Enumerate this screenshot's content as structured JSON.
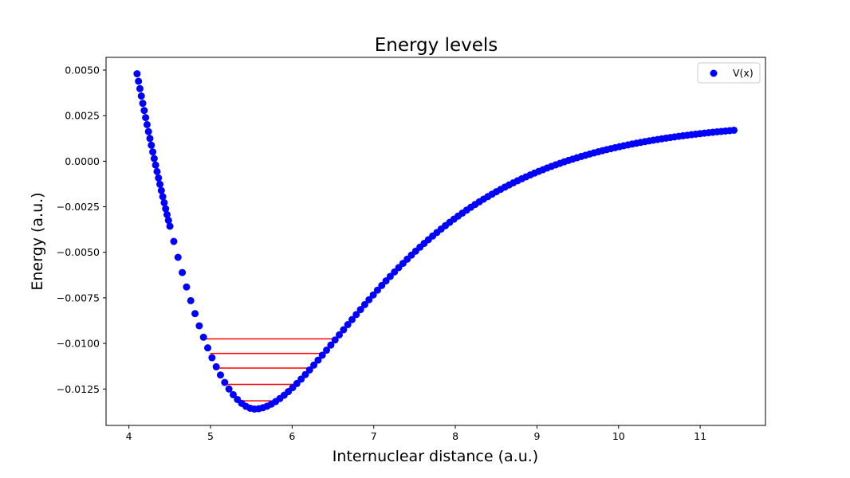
{
  "chart_data": {
    "type": "scatter",
    "title": "Energy levels",
    "xlabel": "Internuclear distance (a.u.)",
    "ylabel": "Energy (a.u.)",
    "xlim": [
      3.72,
      11.8
    ],
    "ylim": [
      -0.0145,
      0.0057
    ],
    "xticks": [
      4,
      5,
      6,
      7,
      8,
      9,
      10,
      11
    ],
    "xtick_labels": [
      "4",
      "5",
      "6",
      "7",
      "8",
      "9",
      "10",
      "11"
    ],
    "yticks": [
      -0.0125,
      -0.01,
      -0.0075,
      -0.005,
      -0.0025,
      0.0,
      0.0025,
      0.005
    ],
    "ytick_labels": [
      "−0.0125",
      "−0.0100",
      "−0.0075",
      "−0.0050",
      "−0.0025",
      "0.0000",
      "0.0025",
      "0.0050"
    ],
    "grid": false,
    "legend": {
      "position": "top-right",
      "entries": [
        {
          "label": "V(x)",
          "color": "#0000ff",
          "marker": "circle"
        }
      ]
    },
    "series": [
      {
        "name": "V(x)",
        "color": "#0000ff",
        "marker": "circle",
        "curve": {
          "xmin": 4.1,
          "xmax": 11.42,
          "x_min_energy": 5.54,
          "v_min": -0.0136,
          "v_asymptote": 0.00228,
          "v_at_xmin": 0.0048,
          "inner_slope": 5.3,
          "outer_k": 0.68
        }
      },
      {
        "name": "energy levels",
        "color": "#ff0000",
        "type": "hlines",
        "levels": [
          -0.01315,
          -0.01225,
          -0.01135,
          -0.01055,
          -0.00975
        ]
      }
    ]
  }
}
